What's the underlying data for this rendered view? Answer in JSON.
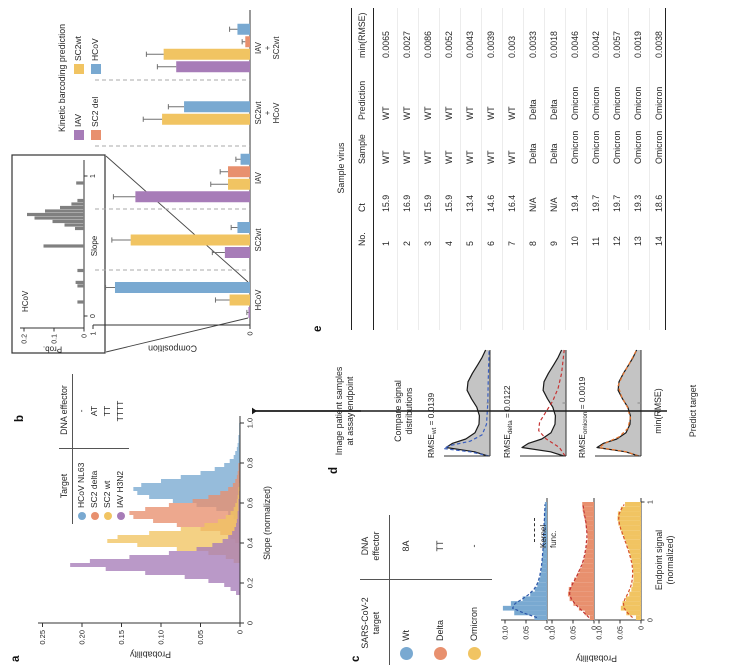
{
  "figure": {
    "panel_labels": {
      "a": "a",
      "b": "b",
      "c": "c",
      "d": "d",
      "e": "e"
    },
    "panel_a": {
      "legend": {
        "header_target": "Target",
        "header_effector": "DNA effector",
        "rows": [
          {
            "target": "HCoV NL63",
            "effector": "-",
            "color": "#79A9D1"
          },
          {
            "target": "SC2 delta",
            "effector": "AT",
            "color": "#E8906E"
          },
          {
            "target": "SC2 wt",
            "effector": "TT",
            "color": "#F1C462"
          },
          {
            "target": "IAV H3N2",
            "effector": "TTTT",
            "color": "#A77CB8"
          }
        ]
      },
      "xlabel": "Slope (normalized)",
      "ylabel": "Probability"
    },
    "panel_b": {
      "legend_title": "Kinetic barcoding prediction",
      "legend_items": [
        {
          "label": "IAV",
          "color": "#A77CB8"
        },
        {
          "label": "SC2wt",
          "color": "#F1C462"
        },
        {
          "label": "SC2 del",
          "color": "#E8906E"
        },
        {
          "label": "HCoV",
          "color": "#79A9D1"
        }
      ],
      "inset": {
        "title": "HCoV",
        "xlabel": "Slope",
        "ylabel": "Prob."
      },
      "ylabel": "Composition",
      "xlabel": "Sample virus"
    },
    "panel_c": {
      "legend": {
        "header_target_l1": "SARS-CoV-2",
        "header_target_l2": "target",
        "header_effector_l1": "DNA",
        "header_effector_l2": "effector",
        "rows": [
          {
            "target": "Wt",
            "effector": "8A",
            "color": "#79A9D1"
          },
          {
            "target": "Delta",
            "effector": "TT",
            "color": "#E8906E"
          },
          {
            "target": "Omicron",
            "effector": "-",
            "color": "#F1C462"
          }
        ]
      },
      "kernel_label_l1": "Kernel",
      "kernel_label_l2": "func.",
      "ylabel": "Probability",
      "xlabel_l1": "Endpoint signal",
      "xlabel_l2": "(normalized)"
    },
    "panel_d": {
      "step1_l1": "Image patient samples",
      "step1_l2": "at assay endpoint",
      "step2_l1": "Compare signal",
      "step2_l2": "distributions",
      "rmse_labels": [
        {
          "prefix": "RMSE",
          "sub": "wt",
          "value": " = 0.0139"
        },
        {
          "prefix": "RMSE",
          "sub": "delta",
          "value": " = 0.0122"
        },
        {
          "prefix": "RMSE",
          "sub": "omicron",
          "value": " = 0.0019"
        }
      ],
      "min_rmse": "min(RMSE)",
      "predict": "Predict target"
    },
    "panel_e": {
      "columns": [
        "No.",
        "Ct",
        "Sample",
        "Prediction",
        "min(RMSE)"
      ],
      "rows": [
        [
          "1",
          "15.9",
          "WT",
          "WT",
          "0.0065"
        ],
        [
          "2",
          "16.9",
          "WT",
          "WT",
          "0.0027"
        ],
        [
          "3",
          "15.9",
          "WT",
          "WT",
          "0.0086"
        ],
        [
          "4",
          "15.9",
          "WT",
          "WT",
          "0.0052"
        ],
        [
          "5",
          "13.4",
          "WT",
          "WT",
          "0.0043"
        ],
        [
          "6",
          "14.6",
          "WT",
          "WT",
          "0.0039"
        ],
        [
          "7",
          "16.4",
          "WT",
          "WT",
          "0.003"
        ],
        [
          "8",
          "N/A",
          "Delta",
          "Delta",
          "0.0033"
        ],
        [
          "9",
          "N/A",
          "Delta",
          "Delta",
          "0.0018"
        ],
        [
          "10",
          "19.4",
          "Omicron",
          "Omicron",
          "0.0046"
        ],
        [
          "11",
          "19.7",
          "Omicron",
          "Omicron",
          "0.0042"
        ],
        [
          "12",
          "19.7",
          "Omicron",
          "Omicron",
          "0.0057"
        ],
        [
          "13",
          "19.3",
          "Omicron",
          "Omicron",
          "0.0019"
        ],
        [
          "14",
          "18.6",
          "Omicron",
          "Omicron",
          "0.0038"
        ]
      ]
    }
  },
  "colors": {
    "blue": "#79A9D1",
    "salmon": "#E8906E",
    "yellow": "#F1C462",
    "purple": "#A77CB8",
    "gray_hist": "#808080",
    "gray_area": "#C4C4C4",
    "axis": "#333333",
    "error_bar": "#707070",
    "dashed_separator": "#A8A8A8"
  },
  "chart_data": [
    {
      "id": "a_slope_histograms",
      "type": "bar",
      "subtype": "overlaid-histograms",
      "xlabel": "Slope (normalized)",
      "ylabel": "Probability",
      "xlim": [
        0,
        1.0
      ],
      "ylim": [
        0,
        0.25
      ],
      "ytick_labels": [
        "0",
        "0.05",
        "0.10",
        "0.15",
        "0.20",
        "0.25"
      ],
      "yticks": [
        0,
        0.05,
        0.1,
        0.15,
        0.2,
        0.25
      ],
      "xtick_labels": [
        "0",
        "0.2",
        "0.4",
        "0.6",
        "0.8",
        "1.0"
      ],
      "xticks": [
        0,
        0.2,
        0.4,
        0.6,
        0.8,
        1.0
      ],
      "bin_width": 0.02,
      "series": [
        {
          "name": "HCoV NL63",
          "color": "#79A9D1",
          "bin_start": 0.5,
          "heights": [
            0.004,
            0.008,
            0.015,
            0.03,
            0.055,
            0.085,
            0.115,
            0.13,
            0.135,
            0.125,
            0.1,
            0.075,
            0.05,
            0.032,
            0.02,
            0.013,
            0.008,
            0.006,
            0.004,
            0.003,
            0.002,
            0.002,
            0.001,
            0.001,
            0.001
          ]
        },
        {
          "name": "SC2 delta",
          "color": "#E8906E",
          "bin_start": 0.4,
          "heights": [
            0.006,
            0.012,
            0.025,
            0.05,
            0.08,
            0.11,
            0.135,
            0.14,
            0.12,
            0.09,
            0.06,
            0.04,
            0.025,
            0.015,
            0.009,
            0.006,
            0.004,
            0.003,
            0.002,
            0.002
          ]
        },
        {
          "name": "SC2 wt",
          "color": "#F1C462",
          "bin_start": 0.3,
          "heights": [
            0.008,
            0.018,
            0.04,
            0.08,
            0.13,
            0.168,
            0.155,
            0.115,
            0.075,
            0.045,
            0.028,
            0.018,
            0.012,
            0.008,
            0.006,
            0.004,
            0.003,
            0.002,
            0.002,
            0.001
          ]
        },
        {
          "name": "IAV H3N2",
          "color": "#A77CB8",
          "bin_start": 0.14,
          "heights": [
            0.005,
            0.012,
            0.02,
            0.04,
            0.07,
            0.12,
            0.17,
            0.215,
            0.19,
            0.14,
            0.09,
            0.055,
            0.035,
            0.022,
            0.015,
            0.01,
            0.007,
            0.005,
            0.004,
            0.003,
            0.003,
            0.002,
            0.002,
            0.002,
            0.001,
            0.001
          ]
        }
      ]
    },
    {
      "id": "b_inset_hcov_hist",
      "type": "bar",
      "subtype": "histogram",
      "title": "HCoV",
      "xlabel": "Slope",
      "ylabel": "Prob.",
      "xlim": [
        0,
        1
      ],
      "ylim": [
        0,
        0.2
      ],
      "yticks": [
        0,
        0.1,
        0.2
      ],
      "ytick_labels": [
        "0",
        "0.1",
        "0.2"
      ],
      "xticks": [
        0,
        1
      ],
      "xtick_labels": [
        "0",
        "1"
      ],
      "bar_width": 0.022,
      "color": "#808080",
      "points": [
        [
          0.1,
          0.022
        ],
        [
          0.215,
          0.022
        ],
        [
          0.24,
          0.028
        ],
        [
          0.325,
          0.022
        ],
        [
          0.5,
          0.135
        ],
        [
          0.625,
          0.03
        ],
        [
          0.65,
          0.065
        ],
        [
          0.675,
          0.105
        ],
        [
          0.7,
          0.165
        ],
        [
          0.725,
          0.19
        ],
        [
          0.75,
          0.13
        ],
        [
          0.775,
          0.08
        ],
        [
          0.8,
          0.042
        ],
        [
          0.825,
          0.022
        ],
        [
          0.95,
          0.026
        ]
      ]
    },
    {
      "id": "b_composition_bars",
      "type": "bar",
      "xlabel": "Sample virus",
      "ylabel": "Composition",
      "ylim": [
        0,
        1
      ],
      "yticks": [
        0,
        1
      ],
      "ytick_labels": [
        "0",
        "1"
      ],
      "categories": [
        "HCoV",
        "SC2wt",
        "IAV",
        "SC2wt + HCoV",
        "IAV + SC2wt"
      ],
      "category_lines": [
        [
          "HCoV"
        ],
        [
          "SC2wt"
        ],
        [
          "IAV"
        ],
        [
          "SC2wt",
          "+",
          "HCoV"
        ],
        [
          "IAV",
          "+",
          "SC2wt"
        ]
      ],
      "series": [
        {
          "name": "IAV",
          "color": "#A77CB8",
          "values": [
            0.01,
            0.16,
            0.73,
            null,
            0.47
          ],
          "errors": [
            0.01,
            0.08,
            0.14,
            null,
            0.12
          ]
        },
        {
          "name": "SC2wt",
          "color": "#F1C462",
          "values": [
            0.13,
            0.76,
            0.14,
            0.56,
            0.55
          ],
          "errors": [
            0.09,
            0.12,
            0.11,
            0.12,
            0.11
          ]
        },
        {
          "name": "SC2 del",
          "color": "#E8906E",
          "values": [
            null,
            null,
            0.14,
            null,
            0.03
          ],
          "errors": [
            null,
            null,
            0.05,
            null,
            0.02
          ]
        },
        {
          "name": "HCoV",
          "color": "#79A9D1",
          "values": [
            0.86,
            0.08,
            0.06,
            0.42,
            0.08
          ],
          "errors": [
            0.06,
            0.04,
            0.03,
            0.1,
            0.05
          ]
        }
      ]
    },
    {
      "id": "c_endpoint_histograms",
      "type": "bar",
      "subtype": "histogram-with-kernel",
      "xlabel": "Endpoint signal (normalized)",
      "ylabel": "Probability",
      "xlim": [
        0,
        1
      ],
      "ylim": [
        0,
        0.115
      ],
      "yticks": [
        0,
        0.05,
        0.1
      ],
      "ytick_labels": [
        "0",
        "0.05",
        "0.10"
      ],
      "xticks": [
        0,
        1
      ],
      "xtick_labels": [
        "0",
        "1"
      ],
      "bin_width": 0.04,
      "series": [
        {
          "name": "Wt",
          "color": "#79A9D1",
          "kernel_color": "#2B55A8",
          "heights": [
            0.03,
            0.078,
            0.105,
            0.086,
            0.058,
            0.04,
            0.029,
            0.023,
            0.019,
            0.016,
            0.014,
            0.013,
            0.012,
            0.011,
            0.01,
            0.009,
            0.009,
            0.008,
            0.008,
            0.007,
            0.007,
            0.006,
            0.006,
            0.005,
            0.005
          ],
          "kernel": [
            0.024,
            0.056,
            0.082,
            0.076,
            0.058,
            0.042,
            0.031,
            0.024,
            0.02,
            0.017,
            0.015,
            0.013,
            0.012,
            0.011,
            0.01,
            0.009,
            0.009,
            0.008,
            0.008,
            0.007,
            0.007,
            0.006,
            0.006,
            0.005,
            0.005
          ]
        },
        {
          "name": "Delta",
          "color": "#E8906E",
          "kernel_color": "#C03030",
          "heights": [
            0.01,
            0.022,
            0.036,
            0.049,
            0.058,
            0.062,
            0.06,
            0.054,
            0.047,
            0.04,
            0.034,
            0.029,
            0.025,
            0.022,
            0.02,
            0.018,
            0.016,
            0.015,
            0.016,
            0.018,
            0.02,
            0.022,
            0.025,
            0.027,
            0.028
          ],
          "kernel": [
            0.012,
            0.023,
            0.035,
            0.046,
            0.054,
            0.058,
            0.057,
            0.052,
            0.046,
            0.04,
            0.035,
            0.03,
            0.026,
            0.023,
            0.021,
            0.019,
            0.018,
            0.017,
            0.017,
            0.018,
            0.019,
            0.021,
            0.023,
            0.025,
            0.026
          ]
        },
        {
          "name": "Omicron",
          "color": "#F1C462",
          "kernel_color": "#D6502A",
          "heights": [
            0.012,
            0.035,
            0.048,
            0.044,
            0.036,
            0.028,
            0.023,
            0.02,
            0.018,
            0.018,
            0.019,
            0.02,
            0.022,
            0.025,
            0.028,
            0.032,
            0.036,
            0.041,
            0.046,
            0.05,
            0.054,
            0.056,
            0.055,
            0.048,
            0.038
          ],
          "kernel": [
            0.02,
            0.032,
            0.04,
            0.042,
            0.038,
            0.032,
            0.027,
            0.023,
            0.021,
            0.02,
            0.02,
            0.021,
            0.023,
            0.026,
            0.029,
            0.033,
            0.037,
            0.041,
            0.045,
            0.049,
            0.052,
            0.053,
            0.052,
            0.047,
            0.04
          ]
        }
      ]
    },
    {
      "id": "d_compare_distributions",
      "type": "area",
      "x_range": [
        0,
        1
      ],
      "sample_color": "#C4C4C4",
      "sample_line_color": "#1a1a1a",
      "sample": [
        [
          0,
          0.05
        ],
        [
          0.04,
          0.35
        ],
        [
          0.08,
          1.0
        ],
        [
          0.12,
          0.85
        ],
        [
          0.16,
          0.55
        ],
        [
          0.22,
          0.34
        ],
        [
          0.3,
          0.25
        ],
        [
          0.38,
          0.24
        ],
        [
          0.46,
          0.3
        ],
        [
          0.54,
          0.42
        ],
        [
          0.62,
          0.52
        ],
        [
          0.7,
          0.5
        ],
        [
          0.78,
          0.4
        ],
        [
          0.86,
          0.28
        ],
        [
          0.93,
          0.18
        ],
        [
          1,
          0.1
        ]
      ],
      "overlays": [
        {
          "name": "wt",
          "rmse": 0.0139,
          "color": "#3A5FC0",
          "points": [
            [
              0,
              0.02
            ],
            [
              0.04,
              0.45
            ],
            [
              0.07,
              1.05
            ],
            [
              0.1,
              0.9
            ],
            [
              0.14,
              0.45
            ],
            [
              0.2,
              0.18
            ],
            [
              0.3,
              0.08
            ],
            [
              0.5,
              0.05
            ],
            [
              0.7,
              0.04
            ],
            [
              1,
              0.02
            ]
          ]
        },
        {
          "name": "delta",
          "rmse": 0.0122,
          "color": "#C63434",
          "points": [
            [
              0,
              0.02
            ],
            [
              0.08,
              0.15
            ],
            [
              0.16,
              0.45
            ],
            [
              0.24,
              0.62
            ],
            [
              0.32,
              0.6
            ],
            [
              0.42,
              0.45
            ],
            [
              0.52,
              0.3
            ],
            [
              0.64,
              0.18
            ],
            [
              0.78,
              0.1
            ],
            [
              1,
              0.04
            ]
          ]
        },
        {
          "name": "omicron",
          "rmse": 0.0019,
          "color": "#E8742C",
          "points": [
            [
              0,
              0.06
            ],
            [
              0.04,
              0.33
            ],
            [
              0.08,
              0.95
            ],
            [
              0.12,
              0.82
            ],
            [
              0.18,
              0.5
            ],
            [
              0.26,
              0.3
            ],
            [
              0.36,
              0.24
            ],
            [
              0.46,
              0.31
            ],
            [
              0.56,
              0.44
            ],
            [
              0.66,
              0.52
            ],
            [
              0.76,
              0.42
            ],
            [
              0.86,
              0.28
            ],
            [
              1,
              0.1
            ]
          ]
        }
      ]
    }
  ]
}
